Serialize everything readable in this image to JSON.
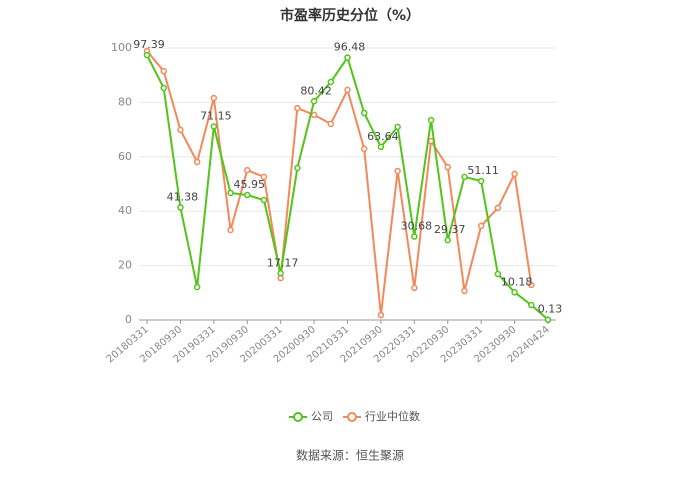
{
  "chart_data": {
    "type": "line",
    "title": "市盈率历史分位（%）",
    "source": "数据来源：恒生聚源",
    "categories": [
      "20180331",
      null,
      "20180930",
      null,
      "20190331",
      null,
      "20190930",
      null,
      "20200331",
      null,
      "20200930",
      null,
      "20210331",
      null,
      "20210930",
      null,
      "20220331",
      null,
      "20220930",
      null,
      "20230331",
      null,
      "20230930",
      null,
      "20240424"
    ],
    "series": [
      {
        "name": "公司",
        "color": "#52c41a",
        "values": [
          97.39,
          85.3,
          41.38,
          12.1,
          71.15,
          46.7,
          45.95,
          44.1,
          17.17,
          55.9,
          80.42,
          87.5,
          96.48,
          76.1,
          63.64,
          71.0,
          30.68,
          73.5,
          29.37,
          52.6,
          51.11,
          16.9,
          10.18,
          5.5,
          0.13
        ],
        "value_labels": [
          "97.39",
          null,
          "41.38",
          null,
          "71.15",
          null,
          "45.95",
          null,
          "17.17",
          null,
          "80.42",
          null,
          "96.48",
          null,
          "63.64",
          null,
          "30.68",
          null,
          "29.37",
          null,
          "51.11",
          null,
          "10.18",
          null,
          "0.13"
        ]
      },
      {
        "name": "行业中位数",
        "color": "#f5885a",
        "values": [
          98.9,
          91.5,
          69.9,
          58.1,
          81.6,
          33.1,
          55.1,
          52.6,
          15.4,
          77.9,
          75.4,
          72.1,
          84.6,
          62.9,
          1.8,
          54.8,
          11.8,
          65.8,
          56.2,
          10.7,
          34.6,
          41.2,
          53.7,
          12.9,
          null
        ]
      }
    ],
    "ylim": [
      0,
      100
    ],
    "yticks": [
      0,
      20,
      40,
      60,
      80,
      100
    ],
    "grid": true,
    "legend": "bottom"
  }
}
